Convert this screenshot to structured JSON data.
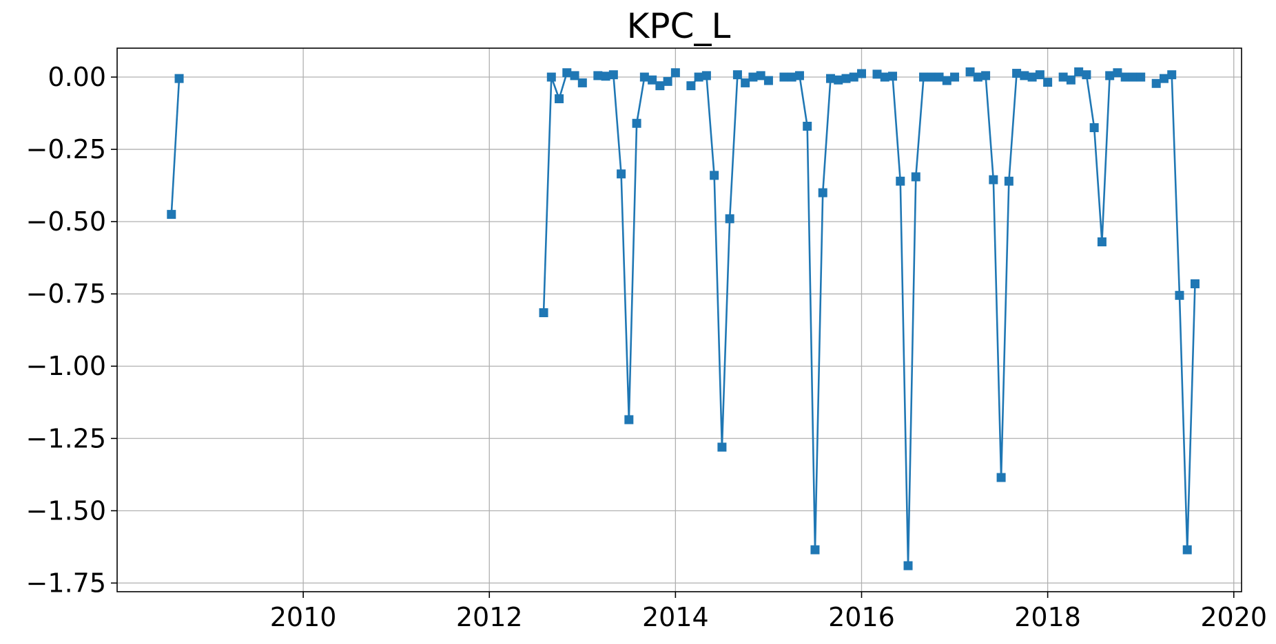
{
  "chart_data": {
    "type": "line",
    "title": "KPC_L",
    "xlabel": "",
    "ylabel": "",
    "x_axis_type": "date",
    "xlim": [
      "2008-01-01",
      "2020-02-01"
    ],
    "ylim": [
      -1.78,
      0.1
    ],
    "x_ticks": [
      "2010",
      "2012",
      "2014",
      "2016",
      "2018",
      "2020"
    ],
    "y_ticks": [
      "0.00",
      "−0.25",
      "−0.50",
      "−0.75",
      "−1.00",
      "−1.25",
      "−1.50",
      "−1.75"
    ],
    "y_tick_values": [
      0,
      -0.25,
      -0.5,
      -0.75,
      -1.0,
      -1.25,
      -1.5,
      -1.75
    ],
    "grid": true,
    "legend": "none",
    "color": "#1f77b4",
    "marker": "square",
    "series": [
      {
        "segments": [
          [
            [
              "2008-08-01",
              -0.475
            ],
            [
              "2008-09-01",
              -0.005
            ]
          ],
          [
            [
              "2012-08-01",
              -0.815
            ],
            [
              "2012-09-01",
              0.0
            ],
            [
              "2012-10-01",
              -0.075
            ],
            [
              "2012-11-01",
              0.015
            ],
            [
              "2012-12-01",
              0.005
            ],
            [
              "2013-01-01",
              -0.02
            ],
            [
              "2013-02-01",
              null
            ],
            [
              "2013-03-01",
              0.005
            ],
            [
              "2013-04-01",
              0.003
            ],
            [
              "2013-05-01",
              0.008
            ],
            [
              "2013-06-01",
              -0.335
            ],
            [
              "2013-07-01",
              -1.185
            ],
            [
              "2013-08-01",
              -0.16
            ],
            [
              "2013-09-01",
              0.0
            ],
            [
              "2013-10-01",
              -0.01
            ],
            [
              "2013-11-01",
              -0.03
            ],
            [
              "2013-12-01",
              -0.015
            ],
            [
              "2014-01-01",
              0.015
            ],
            [
              "2014-02-01",
              null
            ],
            [
              "2014-03-01",
              -0.03
            ],
            [
              "2014-04-01",
              0.0
            ],
            [
              "2014-05-01",
              0.005
            ],
            [
              "2014-06-01",
              -0.34
            ],
            [
              "2014-07-01",
              -1.28
            ],
            [
              "2014-08-01",
              -0.49
            ],
            [
              "2014-09-01",
              0.008
            ],
            [
              "2014-10-01",
              -0.02
            ],
            [
              "2014-11-01",
              0.0
            ],
            [
              "2014-12-01",
              0.005
            ],
            [
              "2015-01-01",
              -0.012
            ],
            [
              "2015-02-01",
              null
            ],
            [
              "2015-03-01",
              0.0
            ],
            [
              "2015-04-01",
              0.0
            ],
            [
              "2015-05-01",
              0.005
            ],
            [
              "2015-06-01",
              -0.17
            ],
            [
              "2015-07-01",
              -1.635
            ],
            [
              "2015-08-01",
              -0.4
            ],
            [
              "2015-09-01",
              -0.005
            ],
            [
              "2015-10-01",
              -0.01
            ],
            [
              "2015-11-01",
              -0.005
            ],
            [
              "2015-12-01",
              0.0
            ],
            [
              "2016-01-01",
              0.012
            ],
            [
              "2016-02-01",
              null
            ],
            [
              "2016-03-01",
              0.01
            ],
            [
              "2016-04-01",
              0.0
            ],
            [
              "2016-05-01",
              0.003
            ],
            [
              "2016-06-01",
              -0.36
            ],
            [
              "2016-07-01",
              -1.69
            ],
            [
              "2016-08-01",
              -0.345
            ],
            [
              "2016-09-01",
              0.0
            ],
            [
              "2016-10-01",
              0.0
            ],
            [
              "2016-11-01",
              0.0
            ],
            [
              "2016-12-01",
              -0.012
            ],
            [
              "2017-01-01",
              0.0
            ],
            [
              "2017-02-01",
              null
            ],
            [
              "2017-03-01",
              0.018
            ],
            [
              "2017-04-01",
              0.0
            ],
            [
              "2017-05-01",
              0.005
            ],
            [
              "2017-06-01",
              -0.355
            ],
            [
              "2017-07-01",
              -1.385
            ],
            [
              "2017-08-01",
              -0.36
            ],
            [
              "2017-09-01",
              0.013
            ],
            [
              "2017-10-01",
              0.005
            ],
            [
              "2017-11-01",
              0.0
            ],
            [
              "2017-12-01",
              0.008
            ],
            [
              "2018-01-01",
              -0.018
            ],
            [
              "2018-02-01",
              null
            ],
            [
              "2018-03-01",
              0.0
            ],
            [
              "2018-04-01",
              -0.01
            ],
            [
              "2018-05-01",
              0.018
            ],
            [
              "2018-06-01",
              0.008
            ],
            [
              "2018-07-01",
              -0.175
            ],
            [
              "2018-08-01",
              -0.57
            ],
            [
              "2018-09-01",
              0.005
            ],
            [
              "2018-10-01",
              0.015
            ],
            [
              "2018-11-01",
              0.0
            ],
            [
              "2018-12-01",
              0.0
            ],
            [
              "2019-01-01",
              0.0
            ],
            [
              "2019-02-01",
              null
            ],
            [
              "2019-03-01",
              -0.022
            ],
            [
              "2019-04-01",
              -0.005
            ],
            [
              "2019-05-01",
              0.008
            ],
            [
              "2019-06-01",
              -0.755
            ],
            [
              "2019-07-01",
              -1.635
            ],
            [
              "2019-08-01",
              -0.715
            ]
          ]
        ]
      }
    ]
  }
}
